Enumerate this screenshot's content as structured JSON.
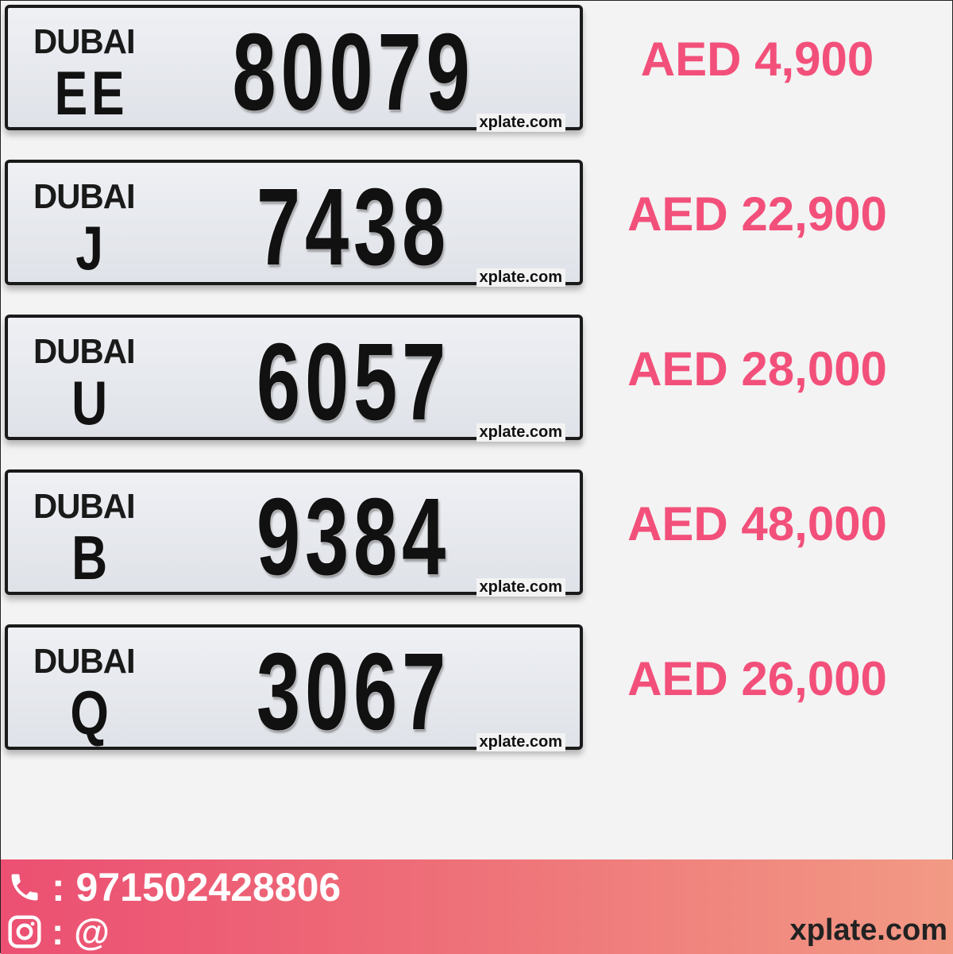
{
  "plates": [
    {
      "emirate": "DUBAI",
      "code": "EE",
      "number": "80079",
      "watermark": "xplate.com",
      "price": "AED 4,900"
    },
    {
      "emirate": "DUBAI",
      "code": "J",
      "number": "7438",
      "watermark": "xplate.com",
      "price": "AED 22,900"
    },
    {
      "emirate": "DUBAI",
      "code": "U",
      "number": "6057",
      "watermark": "xplate.com",
      "price": "AED 28,000"
    },
    {
      "emirate": "DUBAI",
      "code": "B",
      "number": "9384",
      "watermark": "xplate.com",
      "price": "AED 48,000"
    },
    {
      "emirate": "DUBAI",
      "code": "Q",
      "number": "3067",
      "watermark": "xplate.com",
      "price": "AED 26,000"
    }
  ],
  "footer": {
    "phone_icon": "phone-icon",
    "phone": ": 971502428806",
    "instagram_icon": "instagram-icon",
    "instagram": ": @",
    "site": "xplate.com"
  },
  "colors": {
    "price": "#f2507a",
    "footer_start": "#ec4f72",
    "footer_end": "#f29a84"
  }
}
